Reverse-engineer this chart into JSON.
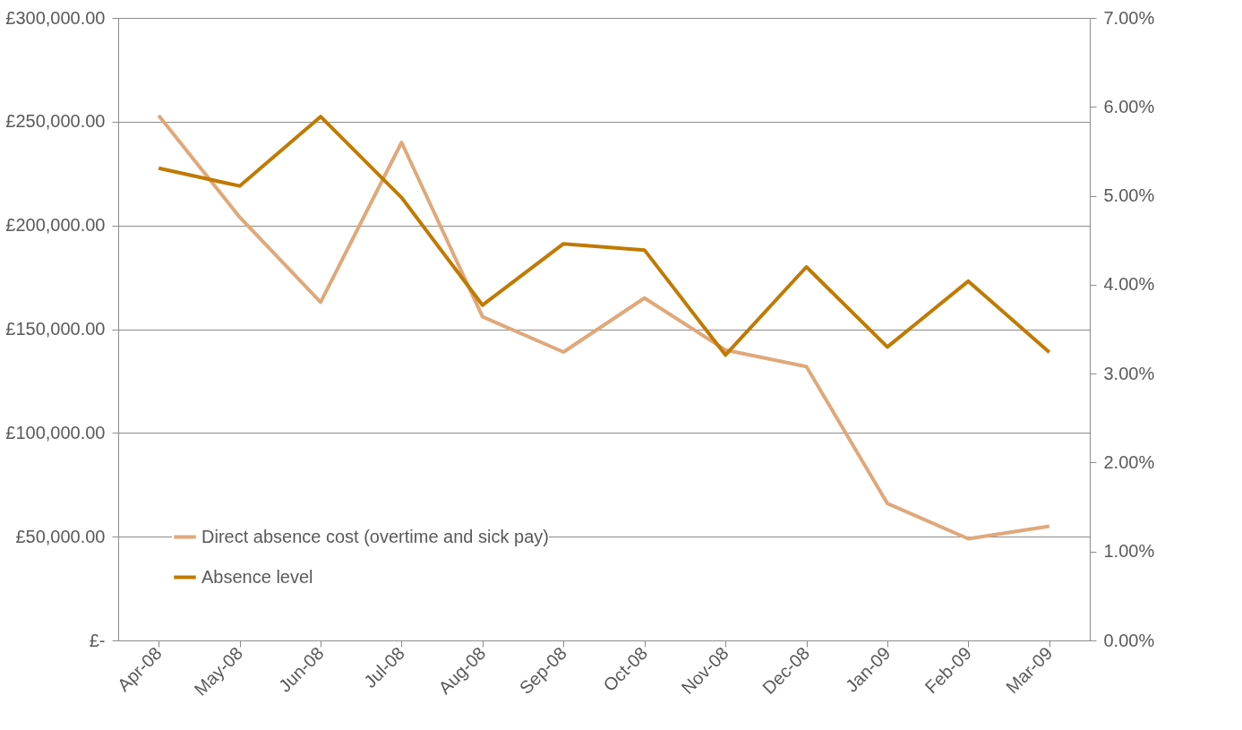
{
  "chart_data": {
    "type": "line",
    "categories": [
      "Apr-08",
      "May-08",
      "Jun-08",
      "Jul-08",
      "Aug-08",
      "Sep-08",
      "Oct-08",
      "Nov-08",
      "Dec-08",
      "Jan-09",
      "Feb-09",
      "Mar-09"
    ],
    "series": [
      {
        "name": "Direct absence cost (overtime and sick pay)",
        "color": "#e0a87a",
        "values": [
          253000,
          204000,
          163000,
          240000,
          156000,
          139000,
          165000,
          140000,
          132000,
          66000,
          49000,
          55000
        ]
      },
      {
        "name": "Absence level",
        "color": "#c07a00",
        "axis": "y2",
        "values": [
          5.31,
          5.11,
          5.89,
          4.98,
          3.77,
          4.46,
          4.39,
          3.21,
          4.2,
          3.3,
          4.04,
          3.24
        ]
      }
    ],
    "ylim": [
      0,
      300000
    ],
    "yticks": [
      {
        "value": 0,
        "label": "£-"
      },
      {
        "value": 50000,
        "label": "£50,000.00"
      },
      {
        "value": 100000,
        "label": "£100,000.00"
      },
      {
        "value": 150000,
        "label": "£150,000.00"
      },
      {
        "value": 200000,
        "label": "£200,000.00"
      },
      {
        "value": 250000,
        "label": "£250,000.00"
      },
      {
        "value": 300000,
        "label": "£300,000.00"
      }
    ],
    "y2lim": [
      0,
      7
    ],
    "y2ticks": [
      {
        "value": 0,
        "label": "0.00%"
      },
      {
        "value": 1,
        "label": "1.00%"
      },
      {
        "value": 2,
        "label": "2.00%"
      },
      {
        "value": 3,
        "label": "3.00%"
      },
      {
        "value": 4,
        "label": "4.00%"
      },
      {
        "value": 5,
        "label": "5.00%"
      },
      {
        "value": 6,
        "label": "6.00%"
      },
      {
        "value": 7,
        "label": "7.00%"
      }
    ],
    "grid": "y",
    "legend": "bottom left",
    "marker": "none",
    "line_style": "solid"
  }
}
